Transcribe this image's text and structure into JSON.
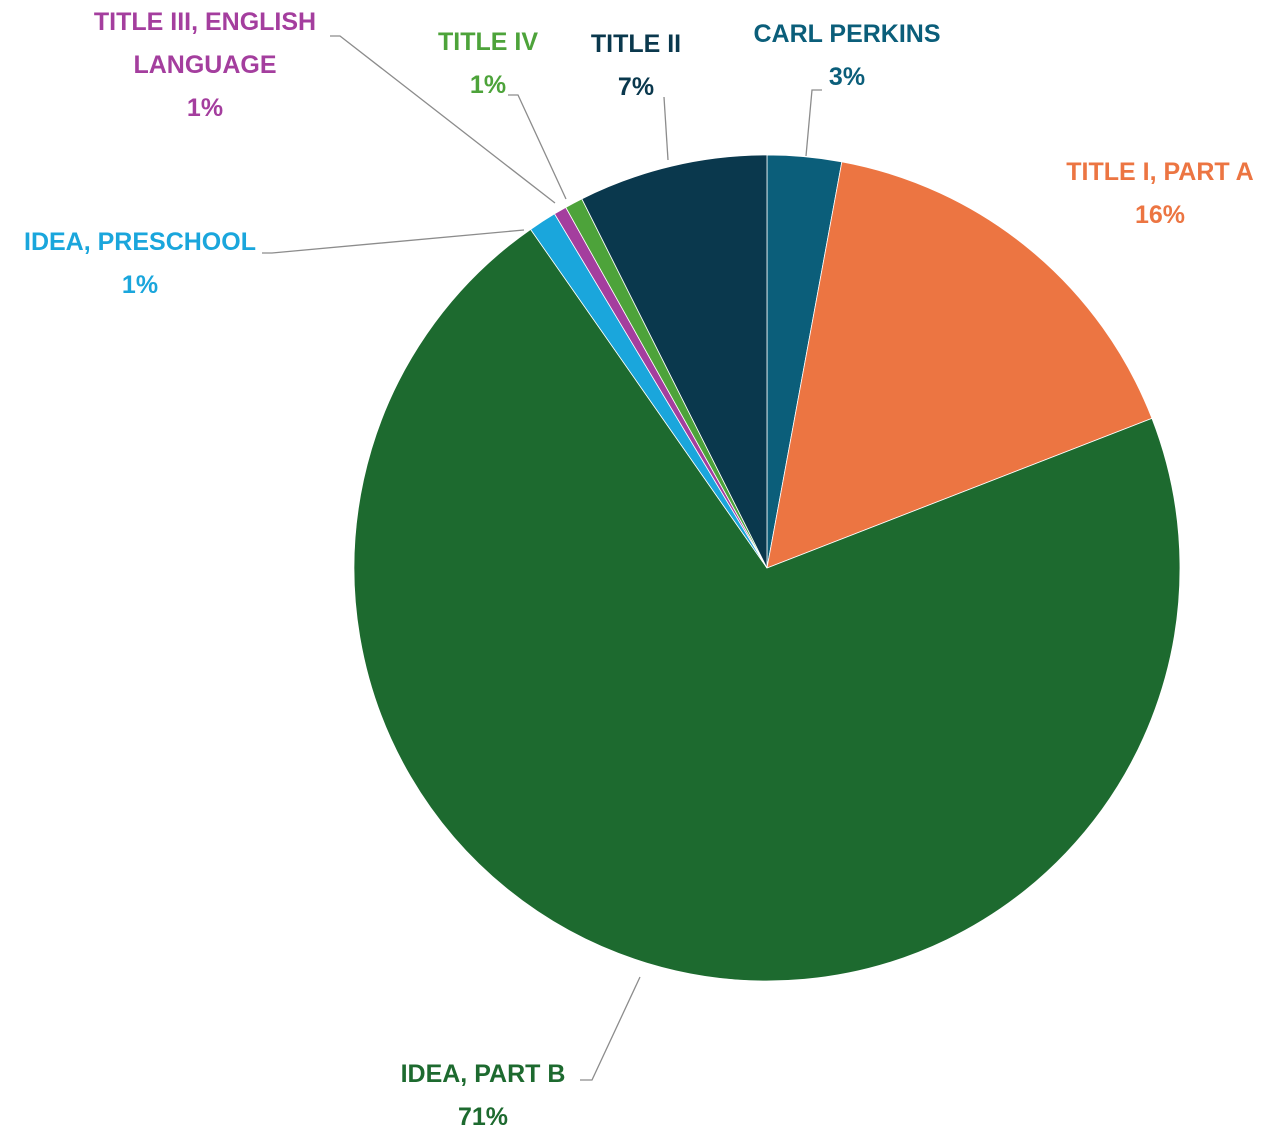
{
  "chart_data": {
    "type": "pie",
    "start_angle_deg": 0,
    "direction": "clockwise",
    "slices": [
      {
        "label": "CARL PERKINS",
        "label_lines": [
          "CARL PERKINS"
        ],
        "percent_label": "3%",
        "value": 2.9,
        "color": "#0b5e7a"
      },
      {
        "label": "TITLE I, PART A",
        "label_lines": [
          "TITLE I, PART A"
        ],
        "percent_label": "16%",
        "value": 16.2,
        "color": "#ec7542"
      },
      {
        "label": "IDEA, PART B",
        "label_lines": [
          "IDEA, PART B"
        ],
        "percent_label": "71%",
        "value": 71.2,
        "color": "#1d6a2f"
      },
      {
        "label": "IDEA, PRESCHOOL",
        "label_lines": [
          "IDEA, PRESCHOOL"
        ],
        "percent_label": "1%",
        "value": 1.1,
        "color": "#1aa6dc"
      },
      {
        "label": "TITLE III, ENGLISH LANGUAGE",
        "label_lines": [
          "TITLE III, ENGLISH",
          "LANGUAGE"
        ],
        "percent_label": "1%",
        "value": 0.5,
        "color": "#a43e9e"
      },
      {
        "label": "TITLE IV",
        "label_lines": [
          "TITLE IV"
        ],
        "percent_label": "1%",
        "value": 0.7,
        "color": "#4da33a"
      },
      {
        "label": "TITLE II",
        "label_lines": [
          "TITLE II"
        ],
        "percent_label": "7%",
        "value": 7.4,
        "color": "#0a384d"
      }
    ]
  }
}
